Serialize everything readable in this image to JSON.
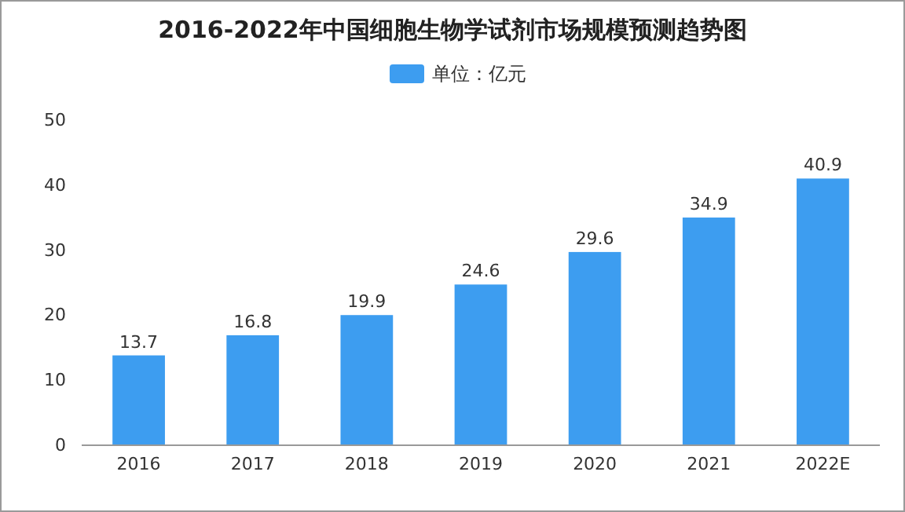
{
  "chart_data": {
    "type": "bar",
    "title": "2016-2022年中国细胞生物学试剂市场规模预测趋势图",
    "categories": [
      "2016",
      "2017",
      "2018",
      "2019",
      "2020",
      "2021",
      "2022E"
    ],
    "series": [
      {
        "name": "单位：亿元",
        "color": "#3d9df0",
        "values": [
          13.7,
          16.8,
          19.9,
          24.6,
          29.6,
          34.9,
          40.9
        ]
      }
    ],
    "ylim": [
      0,
      50
    ],
    "yticks": [
      0,
      10,
      20,
      30,
      40,
      50
    ],
    "data_labels": true,
    "legend": "top",
    "grid": false
  }
}
